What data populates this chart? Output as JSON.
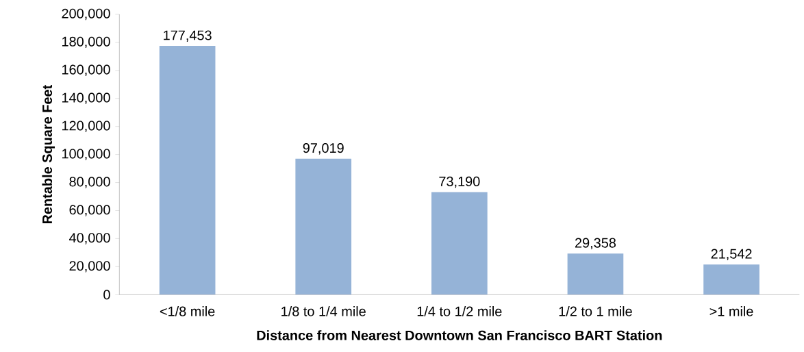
{
  "chart_data": {
    "type": "bar",
    "xlabel": "Distance from Nearest Downtown San Francisco BART Station",
    "ylabel": "Rentable Square Feet",
    "categories": [
      "<1/8 mile",
      "1/8 to 1/4 mile",
      "1/4 to 1/2 mile",
      "1/2 to 1 mile",
      ">1 mile"
    ],
    "values": [
      177453,
      97019,
      73190,
      29358,
      21542
    ],
    "value_labels": [
      "177,453",
      "97,019",
      "73,190",
      "29,358",
      "21,542"
    ],
    "color": "#95b3d7",
    "ylim": [
      0,
      200000
    ],
    "yticks": [
      0,
      {
        "value": 20000,
        "label": "20,000"
      },
      {
        "value": 40000,
        "label": "40,000"
      },
      {
        "value": 60000,
        "label": "60,000"
      },
      {
        "value": 80000,
        "label": "80,000"
      },
      {
        "value": 100000,
        "label": "100,000"
      },
      {
        "value": 120000,
        "label": "120,000"
      },
      {
        "value": 140000,
        "label": "140,000"
      },
      {
        "value": 160000,
        "label": "160,000"
      },
      {
        "value": 180000,
        "label": "180,000"
      },
      {
        "value": 200000,
        "label": "200,000"
      }
    ],
    "grid": false
  }
}
